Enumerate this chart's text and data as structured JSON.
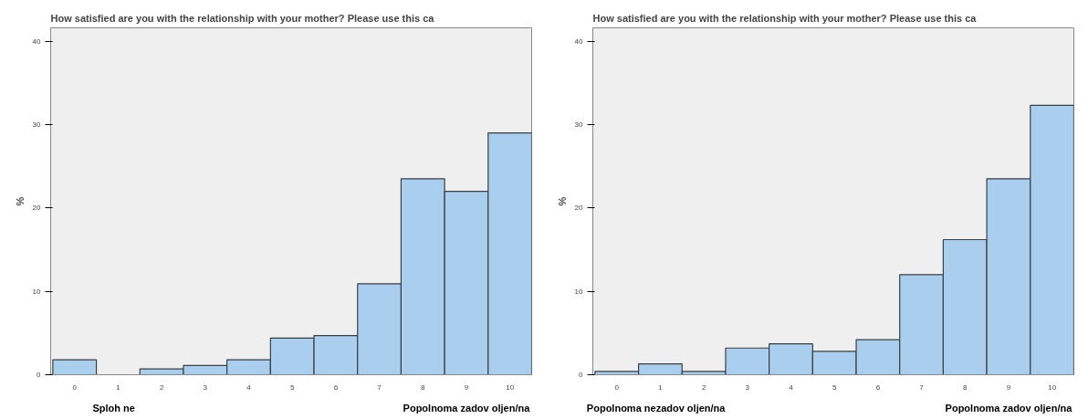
{
  "chart_data": [
    {
      "type": "bar",
      "title": "How satisfied are you with the relationship with your mother? Please use this ca",
      "ylabel": "%",
      "categories": [
        "0",
        "1",
        "2",
        "3",
        "4",
        "5",
        "6",
        "7",
        "8",
        "9",
        "10"
      ],
      "values": [
        1.8,
        0,
        0.7,
        1.1,
        1.8,
        4.4,
        4.7,
        10.9,
        23.5,
        22,
        29
      ],
      "color": "#aacfee",
      "ylim": [
        0,
        41.6
      ],
      "yticks": [
        0,
        10,
        20,
        30,
        40
      ],
      "grid": false,
      "annotations": [
        "Sploh ne",
        "Popolnoma zadov oljen/na"
      ]
    },
    {
      "type": "bar",
      "title": "How satisfied are you with the relationship with your mother? Please use this ca",
      "ylabel": "%",
      "categories": [
        "0",
        "1",
        "2",
        "3",
        "4",
        "5",
        "6",
        "7",
        "8",
        "9",
        "10"
      ],
      "values": [
        0.4,
        1.3,
        0.4,
        3.2,
        3.7,
        2.8,
        4.2,
        12,
        16.2,
        23.5,
        32.3
      ],
      "color": "#aacfee",
      "ylim": [
        0,
        41.6
      ],
      "yticks": [
        0,
        10,
        20,
        30,
        40
      ],
      "grid": false,
      "annotations": [
        "Popolnoma nezadov oljen/na",
        "Popolnoma zadov oljen/na"
      ]
    }
  ]
}
